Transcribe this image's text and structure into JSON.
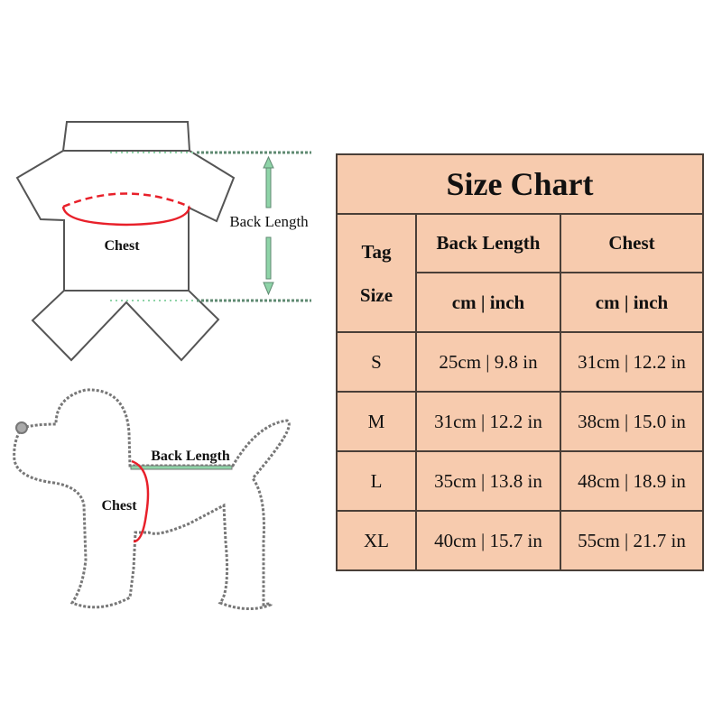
{
  "shirt_diagram": {
    "chest_label": "Chest",
    "back_length_label": "Back Length"
  },
  "dog_diagram": {
    "chest_label": "Chest",
    "back_length_label": "Back Length"
  },
  "colors": {
    "table_fill": "#f7cbae",
    "table_border": "#4a3f38",
    "chest_line": "#e8202a",
    "back_length_line": "#8fd4a8"
  },
  "size_chart": {
    "title": "Size Chart",
    "headers": {
      "tag": "Tag",
      "size": "Size",
      "back_length": "Back Length",
      "chest": "Chest",
      "back_length_unit": "cm | inch",
      "chest_unit": "cm | inch"
    },
    "rows": [
      {
        "size": "S",
        "back_length": "25cm | 9.8 in",
        "chest": "31cm | 12.2 in"
      },
      {
        "size": "M",
        "back_length": "31cm | 12.2 in",
        "chest": "38cm | 15.0 in"
      },
      {
        "size": "L",
        "back_length": "35cm | 13.8 in",
        "chest": "48cm | 18.9 in"
      },
      {
        "size": "XL",
        "back_length": "40cm | 15.7 in",
        "chest": "55cm | 21.7 in"
      }
    ]
  }
}
